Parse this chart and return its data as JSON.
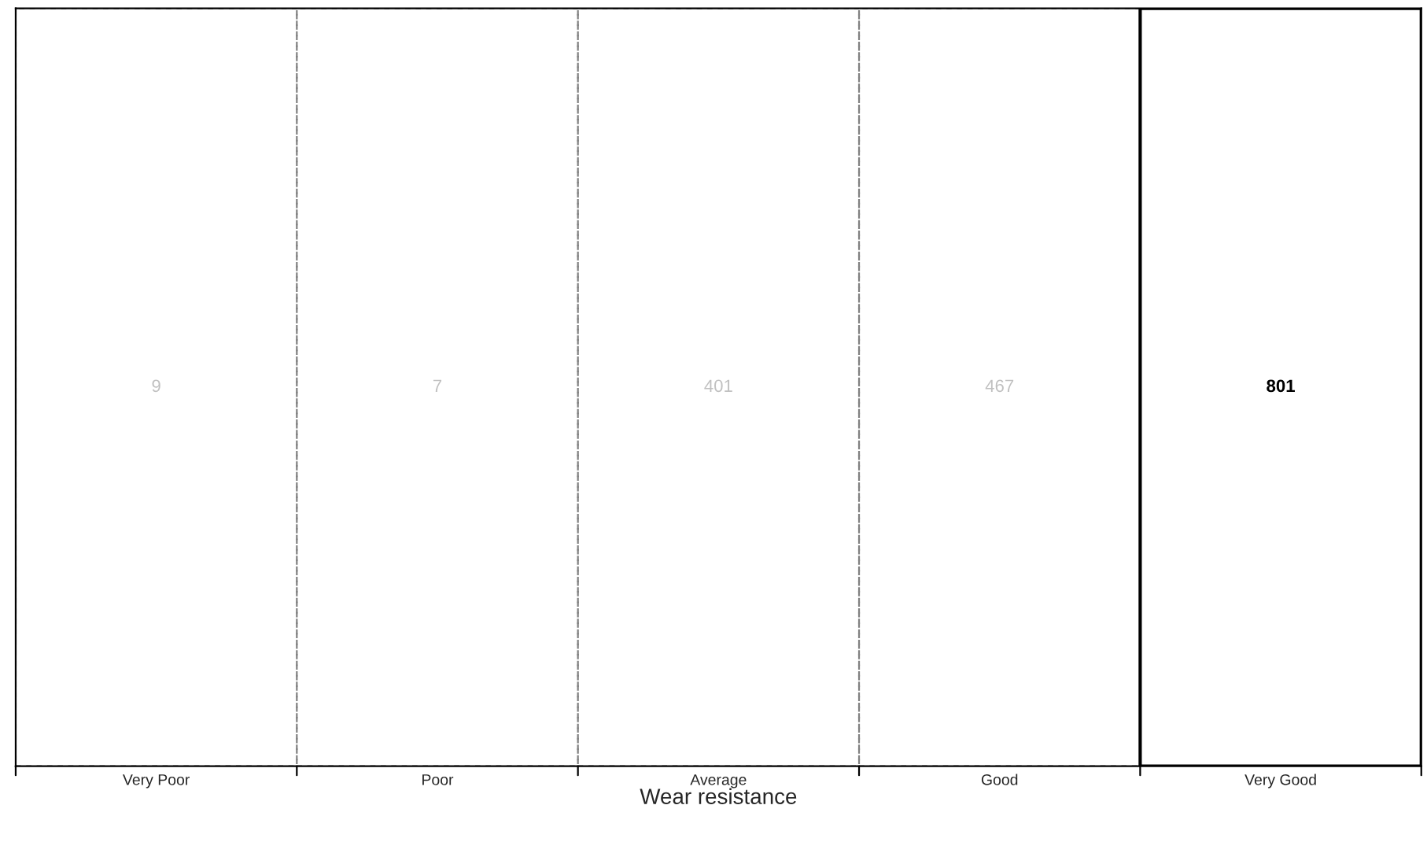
{
  "chart_data": {
    "type": "other",
    "xlabel": "Wear resistance",
    "categories": [
      "Very Poor",
      "Poor",
      "Average",
      "Good",
      "Very Good"
    ],
    "values": [
      9,
      7,
      401,
      467,
      801
    ],
    "colors": [
      "#c0c0c0",
      "#c0c0c0",
      "#c0c0c0",
      "#c0c0c0",
      "#000000"
    ],
    "data_labels": true
  }
}
